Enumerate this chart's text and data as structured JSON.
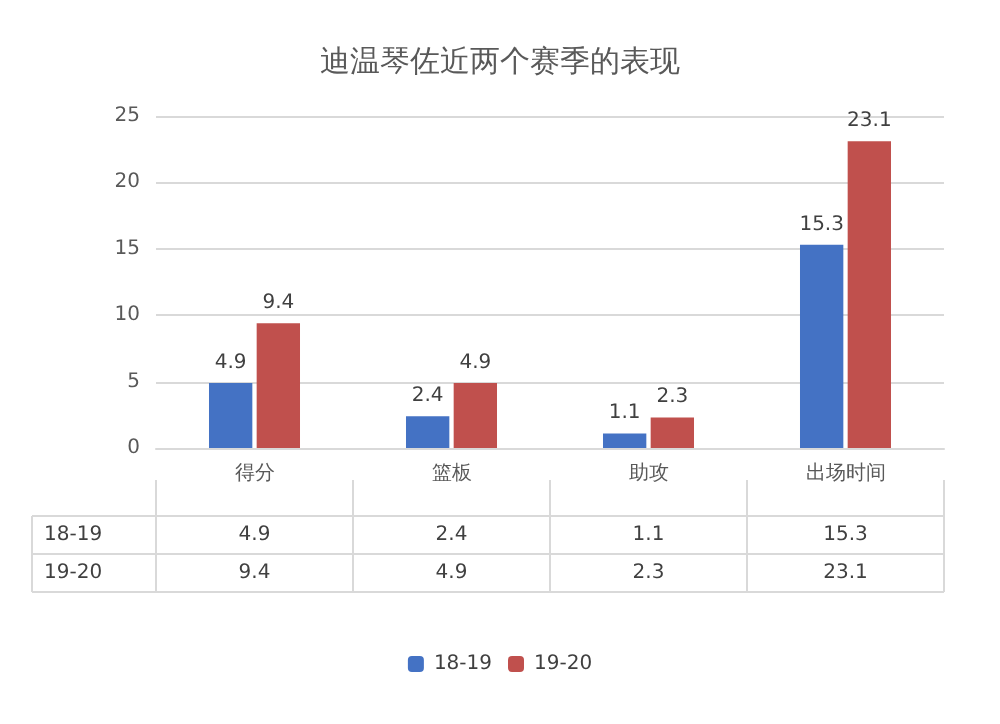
{
  "chart_data": {
    "type": "bar",
    "title": "迪温琴佐近两个赛季的表现",
    "categories": [
      "得分",
      "篮板",
      "助攻",
      "出场时间"
    ],
    "series": [
      {
        "name": "18-19",
        "color": "#4472c4",
        "values": [
          4.9,
          2.4,
          1.1,
          15.3
        ],
        "value_labels": [
          "4.9",
          "2.4",
          "1.1",
          "15.3"
        ]
      },
      {
        "name": "19-20",
        "color": "#c0504d",
        "values": [
          9.4,
          4.9,
          2.3,
          23.1
        ],
        "value_labels": [
          "9.4",
          "4.9",
          "2.3",
          "23.1"
        ]
      }
    ],
    "annotations": [
      "4.9",
      "2.4",
      "1.1",
      "15.3",
      "9.4",
      "4.9",
      "2.3",
      "23.1"
    ],
    "ylim": [
      0,
      25
    ],
    "yticks": [
      0,
      5,
      10,
      15,
      20,
      25
    ],
    "grid": "y",
    "legend": "bottom",
    "data_labels": true
  }
}
